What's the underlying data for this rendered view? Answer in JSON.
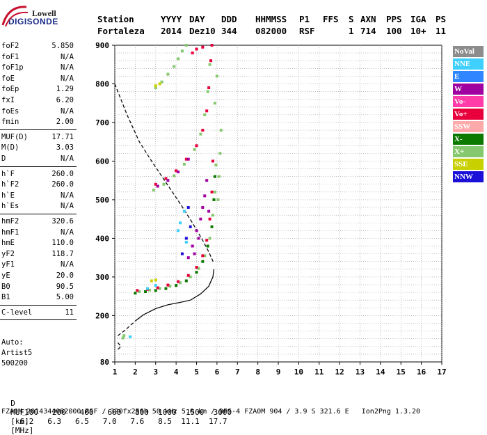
{
  "logo": {
    "line1": "Lowell",
    "line2": "DIGISONDE"
  },
  "header": {
    "labels": [
      "Station",
      "YYYY",
      "DAY",
      "DDD",
      "HHMMSS",
      "P1",
      "FFS",
      "S",
      "AXN",
      "PPS",
      "IGA",
      "PS"
    ],
    "values": [
      "Fortaleza",
      "2014",
      "Dez10",
      "344",
      "082000",
      "RSF",
      "",
      "1",
      "714",
      "100",
      "10+",
      "11"
    ]
  },
  "params": [
    {
      "group": [
        {
          "name": "foF2",
          "value": "5.850"
        },
        {
          "name": "foF1",
          "value": "N/A"
        },
        {
          "name": "foF1p",
          "value": "N/A"
        },
        {
          "name": "foE",
          "value": "N/A"
        },
        {
          "name": "foEp",
          "value": "1.29"
        },
        {
          "name": "fxI",
          "value": "6.20"
        },
        {
          "name": "foEs",
          "value": "N/A"
        },
        {
          "name": "fmin",
          "value": "2.00"
        }
      ]
    },
    {
      "group": [
        {
          "name": "MUF(D)",
          "value": "17.71"
        },
        {
          "name": "M(D)",
          "value": "3.03"
        },
        {
          "name": "D",
          "value": "N/A"
        }
      ]
    },
    {
      "group": [
        {
          "name": "h`F",
          "value": "260.0"
        },
        {
          "name": "h`F2",
          "value": "260.0"
        },
        {
          "name": "h`E",
          "value": "N/A"
        },
        {
          "name": "h`Es",
          "value": "N/A"
        }
      ]
    },
    {
      "group": [
        {
          "name": "hmF2",
          "value": "320.6"
        },
        {
          "name": "hmF1",
          "value": "N/A"
        },
        {
          "name": "hmE",
          "value": "110.0"
        },
        {
          "name": "yF2",
          "value": "118.7"
        },
        {
          "name": "yF1",
          "value": "N/A"
        },
        {
          "name": "yE",
          "value": "20.0"
        },
        {
          "name": "B0",
          "value": "90.5"
        },
        {
          "name": "B1",
          "value": "5.00"
        }
      ]
    },
    {
      "group": [
        {
          "name": "C-level",
          "value": "11"
        }
      ]
    }
  ],
  "autoscale": [
    "Auto:",
    "Artist5",
    "500200"
  ],
  "legend": [
    {
      "label": "NoVal",
      "color": "#8c8c8c"
    },
    {
      "label": "NNE",
      "color": "#3fd0ff"
    },
    {
      "label": "E",
      "color": "#2f86ff"
    },
    {
      "label": "W",
      "color": "#a000a0"
    },
    {
      "label": "Vo-",
      "color": "#ff3ca8"
    },
    {
      "label": "Vo+",
      "color": "#e8003c"
    },
    {
      "label": "SSW",
      "color": "#ffaaaa"
    },
    {
      "label": "X-",
      "color": "#0c7a00"
    },
    {
      "label": "X+",
      "color": "#86c86e"
    },
    {
      "label": "SSE",
      "color": "#c8d000"
    },
    {
      "label": "NNW",
      "color": "#1a10d8"
    }
  ],
  "muf_table": {
    "d_label": "D",
    "d_values": [
      "100",
      "200",
      "400",
      "600",
      "800",
      "1000",
      "1500",
      "3000"
    ],
    "d_unit": "[km]",
    "muf_label": "MUF",
    "muf_values": [
      "6.2",
      "6.3",
      "6.5",
      "7.0",
      "7.6",
      "8.5",
      "11.1",
      "17.7"
    ],
    "muf_unit": "[MHz]"
  },
  "footer": "FZA0M_2014344082000.RSF / 320fx256h 50 kHz 5.0 km / DPS-4 FZA0M 904 / 3.9 S 321.6 E   Ion2Png 1.3.20",
  "chart_data": {
    "type": "scatter",
    "xlim": [
      1,
      17
    ],
    "ylim": [
      80,
      900
    ],
    "x_ticks": [
      1,
      2,
      3,
      4,
      5,
      6,
      7,
      8,
      9,
      10,
      11,
      12,
      13,
      14,
      15,
      16,
      17
    ],
    "y_ticks": [
      80,
      200,
      300,
      400,
      500,
      600,
      700,
      800,
      900
    ],
    "grid": true,
    "legend_position": "right",
    "series": [
      {
        "color": "#0c0c0c",
        "style": "solid",
        "points": [
          [
            2.0,
            186
          ],
          [
            2.4,
            202
          ],
          [
            3.0,
            218
          ],
          [
            3.6,
            228
          ],
          [
            4.2,
            234
          ],
          [
            4.7,
            240
          ],
          [
            5.2,
            256
          ],
          [
            5.6,
            276
          ],
          [
            5.8,
            300
          ],
          [
            5.85,
            320
          ]
        ]
      },
      {
        "color": "#0c0c0c",
        "style": "dashed",
        "points": [
          [
            1.0,
            800
          ],
          [
            1.6,
            720
          ],
          [
            2.2,
            650
          ],
          [
            2.8,
            600
          ],
          [
            3.5,
            545
          ],
          [
            4.2,
            490
          ],
          [
            4.8,
            440
          ],
          [
            5.3,
            395
          ],
          [
            5.6,
            365
          ],
          [
            5.85,
            335
          ]
        ]
      },
      {
        "color": "#0c0c0c",
        "style": "dashed",
        "points": [
          [
            1.15,
            148
          ],
          [
            1.5,
            162
          ],
          [
            2.0,
            186
          ]
        ]
      },
      {
        "color": "#0c0c0c",
        "style": "dashed",
        "points": [
          [
            1.15,
            130
          ],
          [
            1.3,
            120
          ],
          [
            1.15,
            112
          ]
        ]
      },
      {
        "color": "#0c7a00",
        "style": "dots",
        "points": [
          [
            2.0,
            258
          ],
          [
            2.5,
            262
          ],
          [
            3.0,
            265
          ],
          [
            3.5,
            270
          ],
          [
            4.0,
            278
          ],
          [
            4.5,
            290
          ],
          [
            5.0,
            312
          ],
          [
            5.3,
            340
          ],
          [
            5.55,
            380
          ],
          [
            5.75,
            430
          ],
          [
            5.85,
            500
          ],
          [
            5.9,
            560
          ]
        ]
      },
      {
        "color": "#86c86e",
        "style": "dots",
        "points": [
          [
            2.2,
            262
          ],
          [
            2.7,
            266
          ],
          [
            3.2,
            270
          ],
          [
            3.7,
            276
          ],
          [
            4.2,
            285
          ],
          [
            4.7,
            300
          ],
          [
            5.1,
            322
          ],
          [
            5.4,
            355
          ],
          [
            5.65,
            400
          ],
          [
            5.8,
            460
          ],
          [
            5.9,
            520
          ],
          [
            5.95,
            590
          ]
        ]
      },
      {
        "color": "#e8003c",
        "style": "dots",
        "points": [
          [
            2.1,
            265
          ],
          [
            2.6,
            268
          ],
          [
            3.1,
            272
          ],
          [
            3.6,
            279
          ],
          [
            4.1,
            288
          ],
          [
            4.6,
            304
          ],
          [
            5.0,
            325
          ],
          [
            5.3,
            355
          ],
          [
            5.5,
            395
          ],
          [
            5.65,
            450
          ],
          [
            5.75,
            520
          ],
          [
            5.8,
            600
          ]
        ]
      },
      {
        "color": "#a000a0",
        "style": "dots",
        "points": [
          [
            4.6,
            350
          ],
          [
            4.8,
            380
          ],
          [
            5.0,
            420
          ],
          [
            5.2,
            450
          ],
          [
            5.3,
            480
          ],
          [
            5.4,
            510
          ],
          [
            5.5,
            550
          ],
          [
            5.1,
            400
          ],
          [
            4.9,
            360
          ],
          [
            5.6,
            470
          ]
        ]
      },
      {
        "color": "#3fd0ff",
        "style": "dots",
        "points": [
          [
            2.6,
            270
          ],
          [
            3.0,
            278
          ],
          [
            4.1,
            420
          ],
          [
            4.2,
            440
          ],
          [
            4.4,
            470
          ],
          [
            4.5,
            390
          ]
        ]
      },
      {
        "color": "#1a10d8",
        "style": "dots",
        "points": [
          [
            4.3,
            360
          ],
          [
            4.5,
            400
          ],
          [
            4.7,
            430
          ],
          [
            4.6,
            480
          ]
        ]
      },
      {
        "color": "#e8003c",
        "style": "dots",
        "points": [
          [
            3.0,
            540
          ],
          [
            3.5,
            555
          ],
          [
            4.0,
            575
          ],
          [
            4.5,
            605
          ],
          [
            5.0,
            640
          ],
          [
            5.3,
            680
          ],
          [
            5.5,
            730
          ],
          [
            5.6,
            790
          ],
          [
            5.7,
            860
          ],
          [
            5.75,
            900
          ]
        ]
      },
      {
        "color": "#86c86e",
        "style": "dots",
        "points": [
          [
            2.9,
            525
          ],
          [
            3.4,
            540
          ],
          [
            3.9,
            562
          ],
          [
            4.4,
            592
          ],
          [
            4.9,
            630
          ],
          [
            5.2,
            670
          ],
          [
            5.4,
            720
          ],
          [
            5.55,
            780
          ],
          [
            5.65,
            850
          ]
        ]
      },
      {
        "color": "#a000a0",
        "style": "dots",
        "points": [
          [
            3.1,
            535
          ],
          [
            3.6,
            550
          ],
          [
            4.1,
            572
          ],
          [
            4.6,
            605
          ]
        ]
      },
      {
        "color": "#86c86e",
        "style": "dots",
        "points": [
          [
            3.0,
            790
          ],
          [
            3.3,
            805
          ],
          [
            3.6,
            825
          ],
          [
            3.9,
            845
          ],
          [
            4.1,
            865
          ],
          [
            4.3,
            885
          ],
          [
            4.5,
            900
          ]
        ]
      },
      {
        "color": "#c8d000",
        "style": "dots",
        "points": [
          [
            3.0,
            795
          ],
          [
            3.2,
            800
          ]
        ]
      },
      {
        "color": "#e8003c",
        "style": "dots",
        "points": [
          [
            4.8,
            880
          ],
          [
            5.0,
            890
          ],
          [
            5.3,
            895
          ]
        ]
      },
      {
        "color": "#86c86e",
        "style": "dots",
        "points": [
          [
            6.1,
            560
          ],
          [
            6.15,
            620
          ],
          [
            6.2,
            680
          ],
          [
            6.05,
            500
          ],
          [
            5.9,
            750
          ],
          [
            6.0,
            820
          ]
        ]
      },
      {
        "color": "#86c86e",
        "style": "dots",
        "points": [
          [
            1.4,
            142
          ],
          [
            1.45,
            148
          ]
        ]
      },
      {
        "color": "#3fd0ff",
        "style": "dots",
        "points": [
          [
            1.75,
            145
          ]
        ]
      },
      {
        "color": "#c8d000",
        "style": "dots",
        "points": [
          [
            2.8,
            290
          ],
          [
            3.0,
            292
          ]
        ]
      }
    ]
  }
}
